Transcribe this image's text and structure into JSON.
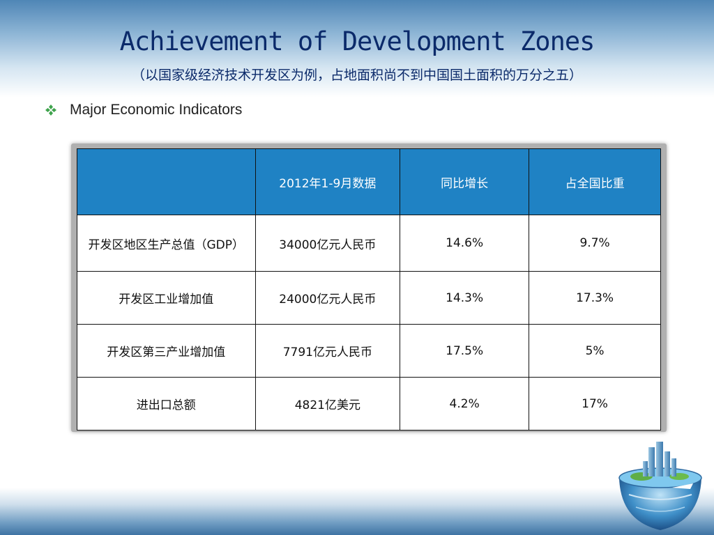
{
  "slide": {
    "title": "Achievement of Development Zones",
    "subtitle": "（以国家级经济技术开发区为例，占地面积尚不到中国国土面积的万分之五）",
    "bullet": "Major Economic Indicators"
  },
  "table": {
    "headers": [
      "",
      "2012年1-9月数据",
      "同比增长",
      "占全国比重"
    ],
    "rows": [
      [
        "开发区地区生产总值（GDP）",
        "34000亿元人民币",
        "14.6%",
        "9.7%"
      ],
      [
        "开发区工业增加值",
        "24000亿元人民币",
        "14.3%",
        "17.3%"
      ],
      [
        "开发区第三产业增加值",
        "7791亿元人民币",
        "17.5%",
        "5%"
      ],
      [
        "进出口总额",
        "4821亿美元",
        "4.2%",
        "17%"
      ]
    ]
  },
  "colors": {
    "title": "#0b2a6a",
    "header_bg": "#1f82c4",
    "bullet": "#3fa34d"
  },
  "icons": {
    "bullet": "four-diamond-bullet-icon",
    "decoration": "globe-city-icon"
  }
}
